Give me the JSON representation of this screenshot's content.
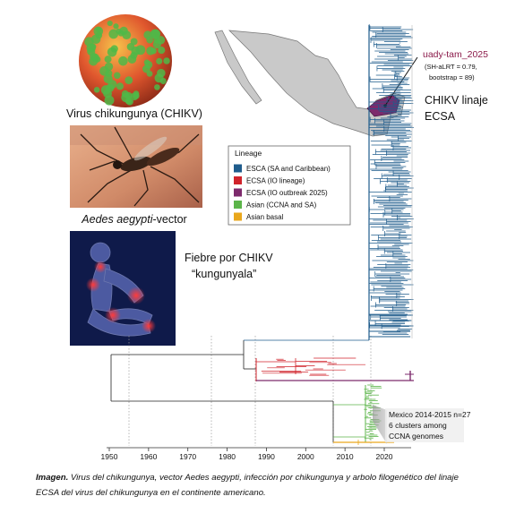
{
  "panels": {
    "virus_label": "Virus chikungunya (CHIKV)",
    "vector_label": {
      "italic": "Aedes aegypti",
      "rest": "-vector"
    },
    "fever_label": [
      "Fiebre por CHIKV",
      "“kungunyala”"
    ]
  },
  "tree": {
    "annotation": {
      "name": "uady-tam_2025",
      "details": [
        "(SH-aLRT = 0.79,",
        "bootstrap = 89)"
      ]
    },
    "clade_label": [
      "CHIKV linaje",
      "ECSA"
    ],
    "legend": {
      "title": "Lineage",
      "items": [
        {
          "label": "ESCA (SA and Caribbean)",
          "color": "#1f5c8c"
        },
        {
          "label": "ECSA (IO lineage)",
          "color": "#d0232b"
        },
        {
          "label": "ECSA (IO outbreak 2025)",
          "color": "#7d2a6c"
        },
        {
          "label": "Asian (CCNA and SA)",
          "color": "#5cb54a"
        },
        {
          "label": "Asian basal",
          "color": "#e9a71c"
        }
      ]
    },
    "mexico_note": [
      "Mexico 2014-2015 n=27",
      "6 clusters among",
      "CCNA genomes"
    ],
    "xticks": [
      1950,
      1960,
      1970,
      1980,
      1990,
      2000,
      2010,
      2020
    ]
  },
  "caption": {
    "label": "Imagen.",
    "lines": [
      " Virus del chikungunya, vector Aedes aegypti, infección por chikungunya y arbolo filogenético del linaje",
      "ECSA del virus del chikungunya en el continente americano."
    ]
  }
}
